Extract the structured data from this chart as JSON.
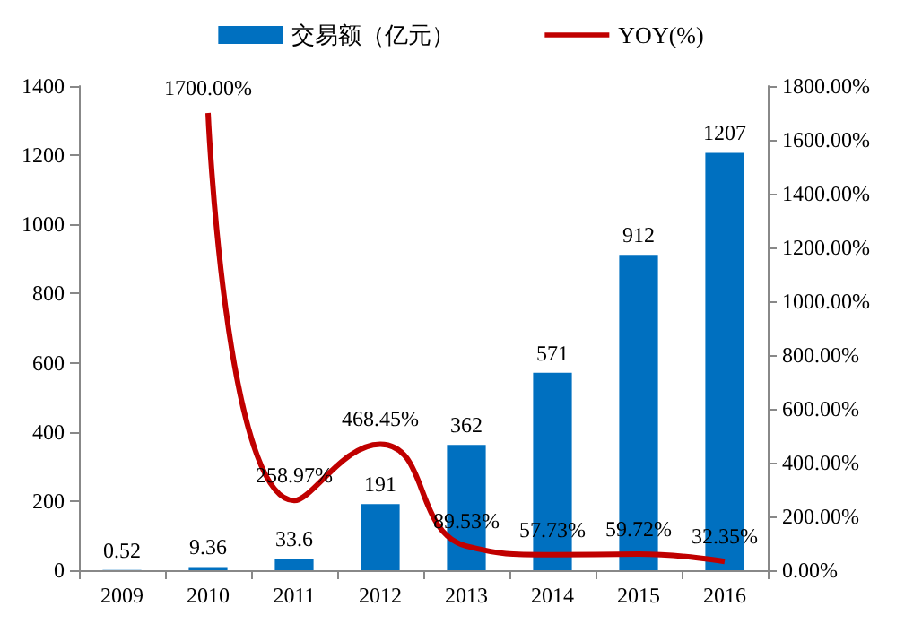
{
  "chart_data": {
    "type": "bar",
    "categories": [
      "2009",
      "2010",
      "2011",
      "2012",
      "2013",
      "2014",
      "2015",
      "2016"
    ],
    "series": [
      {
        "name": "交易额（亿元）",
        "color": "#0070c0",
        "values": [
          0.52,
          9.36,
          33.6,
          191,
          362,
          571,
          912,
          1207
        ],
        "value_labels": [
          "0.52",
          "9.36",
          "33.6",
          "191",
          "362",
          "571",
          "912",
          "1207"
        ]
      },
      {
        "name": "YOY(%)",
        "type": "line",
        "axis": "y2",
        "color": "#c00000",
        "values": [
          null,
          1700,
          258.97,
          468.45,
          89.53,
          57.73,
          59.72,
          32.35
        ],
        "value_labels": [
          null,
          "1700.00%",
          "258.97%",
          "468.45%",
          "89.53%",
          "57.73%",
          "59.72%",
          "32.35%"
        ]
      }
    ],
    "ylim": [
      0,
      1400
    ],
    "yticks": [
      0,
      200,
      400,
      600,
      800,
      1000,
      1200,
      1400
    ],
    "y2lim": [
      0,
      1800
    ],
    "y2ticks": [
      {
        "value": 0,
        "label": "0.00%"
      },
      {
        "value": 200,
        "label": "200.00%"
      },
      {
        "value": 400,
        "label": "400.00%"
      },
      {
        "value": 600,
        "label": "600.00%"
      },
      {
        "value": 800,
        "label": "800.00%"
      },
      {
        "value": 1000,
        "label": "1000.00%"
      },
      {
        "value": 1200,
        "label": "1200.00%"
      },
      {
        "value": 1400,
        "label": "1400.00%"
      },
      {
        "value": 1600,
        "label": "1600.00%"
      },
      {
        "value": 1800,
        "label": "1800.00%"
      }
    ],
    "legend": "top",
    "grid": false,
    "marker": "none",
    "line_style": "solid"
  }
}
